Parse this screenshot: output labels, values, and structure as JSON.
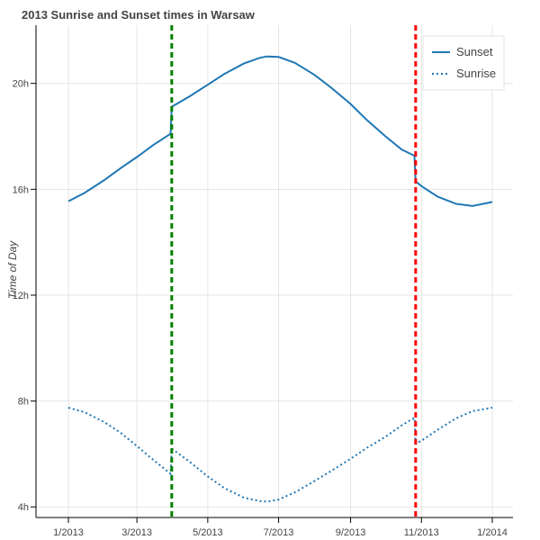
{
  "chart_data": {
    "type": "line",
    "title": "2013 Sunrise and Sunset times in Warsaw",
    "xlabel": "",
    "ylabel": "Time of Day",
    "xlim": [
      "2013-01-01",
      "2014-01-01"
    ],
    "ylim_hours": [
      3.6,
      22.2
    ],
    "x_ticks": [
      "1/2013",
      "3/2013",
      "5/2013",
      "7/2013",
      "9/2013",
      "11/2013",
      "1/2014"
    ],
    "y_ticks": [
      {
        "value": 4,
        "label": "4h"
      },
      {
        "value": 8,
        "label": "8h"
      },
      {
        "value": 12,
        "label": "12h"
      },
      {
        "value": 16,
        "label": "16h"
      },
      {
        "value": 20,
        "label": "20h"
      }
    ],
    "grid": true,
    "legend_position": "top-right",
    "series": [
      {
        "name": "Sunset",
        "style": "solid",
        "color": "#1f77b4",
        "x": [
          "2013-01-01",
          "2013-01-15",
          "2013-02-01",
          "2013-02-15",
          "2013-03-01",
          "2013-03-15",
          "2013-03-30",
          "2013-03-31",
          "2013-04-15",
          "2013-05-01",
          "2013-05-15",
          "2013-06-01",
          "2013-06-15",
          "2013-06-21",
          "2013-07-01",
          "2013-07-15",
          "2013-08-01",
          "2013-08-15",
          "2013-09-01",
          "2013-09-15",
          "2013-10-01",
          "2013-10-15",
          "2013-10-26",
          "2013-10-27",
          "2013-11-01",
          "2013-11-15",
          "2013-12-01",
          "2013-12-15",
          "2014-01-01"
        ],
        "y": [
          15.55,
          15.87,
          16.35,
          16.8,
          17.22,
          17.67,
          18.1,
          19.12,
          19.5,
          19.95,
          20.35,
          20.75,
          20.97,
          21.02,
          21.0,
          20.78,
          20.32,
          19.85,
          19.22,
          18.62,
          18.0,
          17.5,
          17.27,
          16.3,
          16.12,
          15.72,
          15.45,
          15.37,
          15.52
        ]
      },
      {
        "name": "Sunrise",
        "style": "dotted",
        "color": "#1f77b4",
        "x": [
          "2013-01-01",
          "2013-01-15",
          "2013-02-01",
          "2013-02-15",
          "2013-03-01",
          "2013-03-15",
          "2013-03-30",
          "2013-03-31",
          "2013-04-15",
          "2013-05-01",
          "2013-05-15",
          "2013-06-01",
          "2013-06-15",
          "2013-06-21",
          "2013-07-01",
          "2013-07-15",
          "2013-08-01",
          "2013-08-15",
          "2013-09-01",
          "2013-09-15",
          "2013-10-01",
          "2013-10-15",
          "2013-10-26",
          "2013-10-27",
          "2013-11-01",
          "2013-11-15",
          "2013-12-01",
          "2013-12-15",
          "2014-01-01"
        ],
        "y": [
          7.75,
          7.58,
          7.2,
          6.8,
          6.3,
          5.78,
          5.25,
          6.2,
          5.72,
          5.15,
          4.72,
          4.35,
          4.22,
          4.2,
          4.28,
          4.55,
          4.98,
          5.35,
          5.82,
          6.23,
          6.65,
          7.08,
          7.37,
          6.4,
          6.5,
          6.92,
          7.35,
          7.62,
          7.75
        ]
      }
    ],
    "markers": [
      {
        "date": "2013-03-31",
        "color": "#008000",
        "style": "dashed"
      },
      {
        "date": "2013-10-27",
        "color": "#ff0000",
        "style": "dashed"
      }
    ]
  }
}
